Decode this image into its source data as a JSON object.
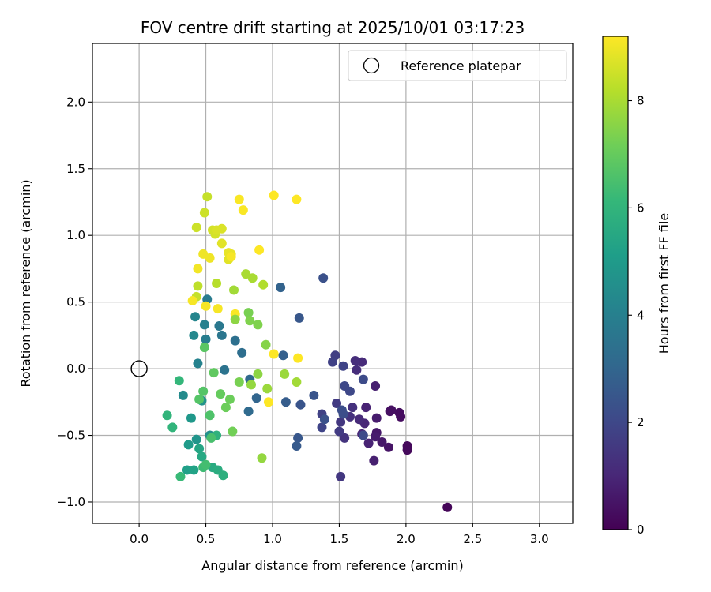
{
  "chart_data": {
    "type": "scatter",
    "title": "FOV centre drift starting at 2025/10/01 03:17:23",
    "xlabel": "Angular distance from reference (arcmin)",
    "ylabel": "Rotation from reference (arcmin)",
    "xlim": [
      -0.35,
      3.25
    ],
    "ylim": [
      -1.16,
      2.44
    ],
    "xticks": [
      0.0,
      0.5,
      1.0,
      1.5,
      2.0,
      2.5,
      3.0
    ],
    "xtick_labels": [
      "0.0",
      "0.5",
      "1.0",
      "1.5",
      "2.0",
      "2.5",
      "3.0"
    ],
    "yticks": [
      -1.0,
      -0.5,
      0.0,
      0.5,
      1.0,
      1.5,
      2.0
    ],
    "ytick_labels": [
      "−1.0",
      "−0.5",
      "0.0",
      "0.5",
      "1.0",
      "1.5",
      "2.0"
    ],
    "grid": true,
    "legend": {
      "position": "upper-right",
      "entries": [
        "Reference platepar"
      ]
    },
    "reference_point": {
      "x": 0.0,
      "y": 0.0
    },
    "colorbar": {
      "label": "Hours from first FF file",
      "colormap": "viridis",
      "range": [
        0,
        9.2
      ],
      "ticks": [
        0,
        2,
        4,
        6,
        8
      ],
      "tick_labels": [
        "0",
        "2",
        "4",
        "6",
        "8"
      ]
    },
    "points": [
      [
        2.31,
        -1.04,
        0.1
      ],
      [
        2.01,
        -0.58,
        0.2
      ],
      [
        2.01,
        -0.61,
        0.2
      ],
      [
        1.95,
        -0.33,
        0.3
      ],
      [
        1.96,
        -0.36,
        0.3
      ],
      [
        1.89,
        -0.31,
        0.4
      ],
      [
        1.88,
        -0.32,
        0.4
      ],
      [
        1.87,
        -0.59,
        0.5
      ],
      [
        1.82,
        -0.55,
        0.6
      ],
      [
        1.78,
        -0.48,
        0.6
      ],
      [
        1.78,
        -0.37,
        0.7
      ],
      [
        1.77,
        -0.51,
        0.7
      ],
      [
        1.77,
        -0.13,
        0.8
      ],
      [
        1.76,
        -0.69,
        0.8
      ],
      [
        1.72,
        -0.56,
        0.9
      ],
      [
        1.7,
        -0.29,
        0.9
      ],
      [
        1.69,
        -0.41,
        1.0
      ],
      [
        1.67,
        -0.49,
        1.0
      ],
      [
        1.67,
        0.05,
        1.1
      ],
      [
        1.65,
        -0.38,
        1.1
      ],
      [
        1.63,
        -0.01,
        1.2
      ],
      [
        1.62,
        0.06,
        1.2
      ],
      [
        1.6,
        -0.29,
        1.3
      ],
      [
        1.58,
        -0.36,
        1.3
      ],
      [
        1.54,
        -0.52,
        1.4
      ],
      [
        1.51,
        -0.81,
        1.5
      ],
      [
        1.51,
        -0.4,
        1.5
      ],
      [
        1.5,
        -0.47,
        1.6
      ],
      [
        1.48,
        -0.26,
        1.6
      ],
      [
        1.47,
        0.1,
        1.7
      ],
      [
        1.45,
        0.05,
        1.8
      ],
      [
        1.37,
        -0.34,
        1.8
      ],
      [
        1.37,
        -0.44,
        1.9
      ],
      [
        1.53,
        0.02,
        1.9
      ],
      [
        1.54,
        -0.13,
        2.0
      ],
      [
        1.58,
        -0.17,
        2.0
      ],
      [
        1.68,
        -0.08,
        2.1
      ],
      [
        1.68,
        -0.5,
        2.1
      ],
      [
        1.52,
        -0.31,
        2.2
      ],
      [
        1.53,
        -0.34,
        2.2
      ],
      [
        1.38,
        0.68,
        2.3
      ],
      [
        1.39,
        -0.38,
        2.3
      ],
      [
        1.31,
        -0.2,
        2.4
      ],
      [
        1.21,
        -0.27,
        2.4
      ],
      [
        1.19,
        -0.52,
        2.5
      ],
      [
        1.2,
        0.38,
        2.5
      ],
      [
        1.18,
        -0.58,
        2.6
      ],
      [
        1.1,
        -0.25,
        2.7
      ],
      [
        1.08,
        0.1,
        2.8
      ],
      [
        1.06,
        0.61,
        2.9
      ],
      [
        0.88,
        -0.22,
        3.0
      ],
      [
        0.83,
        -0.08,
        3.1
      ],
      [
        0.82,
        -0.32,
        3.2
      ],
      [
        0.77,
        0.12,
        3.3
      ],
      [
        0.72,
        0.21,
        3.4
      ],
      [
        0.64,
        -0.01,
        3.5
      ],
      [
        0.62,
        0.25,
        3.6
      ],
      [
        0.6,
        0.32,
        3.7
      ],
      [
        0.51,
        0.52,
        3.8
      ],
      [
        0.5,
        0.22,
        3.9
      ],
      [
        0.49,
        0.33,
        4.0
      ],
      [
        0.44,
        0.04,
        4.1
      ],
      [
        0.42,
        0.39,
        4.2
      ],
      [
        0.41,
        0.25,
        4.3
      ],
      [
        0.33,
        -0.2,
        4.4
      ],
      [
        0.53,
        -0.5,
        4.6
      ],
      [
        0.47,
        -0.24,
        4.7
      ],
      [
        0.43,
        -0.53,
        4.8
      ],
      [
        0.39,
        -0.37,
        4.9
      ],
      [
        0.37,
        -0.57,
        5.0
      ],
      [
        0.36,
        -0.76,
        5.2
      ],
      [
        0.41,
        -0.76,
        5.3
      ],
      [
        0.45,
        -0.6,
        5.4
      ],
      [
        0.47,
        -0.66,
        5.5
      ],
      [
        0.55,
        -0.74,
        5.6
      ],
      [
        0.59,
        -0.76,
        5.7
      ],
      [
        0.63,
        -0.8,
        5.8
      ],
      [
        0.58,
        -0.5,
        5.9
      ],
      [
        0.21,
        -0.35,
        6.0
      ],
      [
        0.25,
        -0.44,
        6.0
      ],
      [
        0.3,
        -0.09,
        6.1
      ],
      [
        0.31,
        -0.81,
        6.2
      ],
      [
        0.48,
        -0.74,
        6.3
      ],
      [
        0.5,
        -0.72,
        6.4
      ],
      [
        0.54,
        -0.52,
        6.5
      ],
      [
        0.53,
        -0.35,
        6.6
      ],
      [
        0.48,
        -0.17,
        6.7
      ],
      [
        0.45,
        -0.23,
        6.7
      ],
      [
        0.49,
        0.16,
        6.8
      ],
      [
        0.56,
        -0.03,
        6.9
      ],
      [
        0.61,
        -0.19,
        7.0
      ],
      [
        0.65,
        -0.29,
        7.1
      ],
      [
        0.68,
        -0.23,
        7.1
      ],
      [
        0.7,
        -0.47,
        7.2
      ],
      [
        0.75,
        -0.1,
        7.3
      ],
      [
        0.82,
        0.42,
        7.3
      ],
      [
        0.83,
        0.36,
        7.4
      ],
      [
        0.89,
        0.33,
        7.4
      ],
      [
        0.95,
        0.18,
        7.5
      ],
      [
        0.89,
        -0.04,
        7.6
      ],
      [
        0.92,
        -0.67,
        7.7
      ],
      [
        0.84,
        -0.12,
        7.7
      ],
      [
        0.96,
        -0.15,
        7.8
      ],
      [
        1.09,
        -0.04,
        7.8
      ],
      [
        1.18,
        -0.1,
        7.9
      ],
      [
        0.71,
        0.59,
        7.9
      ],
      [
        0.8,
        0.71,
        8.0
      ],
      [
        0.85,
        0.68,
        8.0
      ],
      [
        0.93,
        0.63,
        8.1
      ],
      [
        0.58,
        0.64,
        8.2
      ],
      [
        0.44,
        0.62,
        8.3
      ],
      [
        0.43,
        0.54,
        8.4
      ],
      [
        0.51,
        1.29,
        8.4
      ],
      [
        0.49,
        1.17,
        8.5
      ],
      [
        0.43,
        1.06,
        8.5
      ],
      [
        0.55,
        1.04,
        8.6
      ],
      [
        0.57,
        1.01,
        8.6
      ],
      [
        0.58,
        1.04,
        8.7
      ],
      [
        0.62,
        1.05,
        8.7
      ],
      [
        0.62,
        0.94,
        8.8
      ],
      [
        0.67,
        0.82,
        8.8
      ],
      [
        0.67,
        0.87,
        8.9
      ],
      [
        0.69,
        0.86,
        8.9
      ],
      [
        0.53,
        0.83,
        9.0
      ],
      [
        0.48,
        0.86,
        9.0
      ],
      [
        0.44,
        0.75,
        9.05
      ],
      [
        0.4,
        0.51,
        9.1
      ],
      [
        0.5,
        0.47,
        9.1
      ],
      [
        0.59,
        0.45,
        9.1
      ],
      [
        0.72,
        0.41,
        9.15
      ],
      [
        0.75,
        1.27,
        9.15
      ],
      [
        0.78,
        1.19,
        9.15
      ],
      [
        0.9,
        0.89,
        9.2
      ],
      [
        1.01,
        1.3,
        9.2
      ],
      [
        1.18,
        1.27,
        9.2
      ],
      [
        0.97,
        -0.25,
        9.2
      ],
      [
        1.01,
        0.11,
        9.2
      ],
      [
        1.19,
        0.08,
        9.2
      ],
      [
        0.69,
        0.84,
        9.1
      ],
      [
        0.72,
        0.37,
        7.6
      ]
    ]
  }
}
